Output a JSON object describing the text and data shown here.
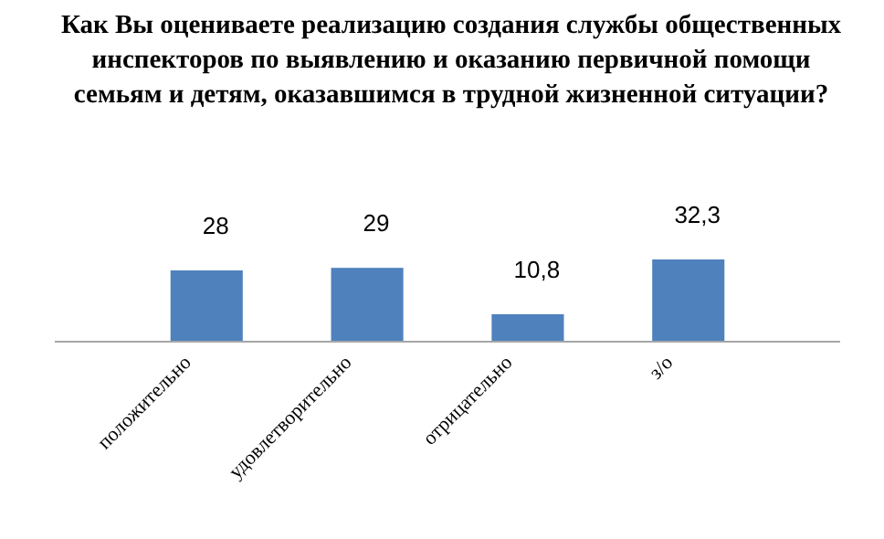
{
  "chart_data": {
    "type": "bar",
    "title": "Как Вы оцениваете реализацию  создания службы общественных инспекторов по выявлению и оказанию первичной помощи семьям и детям, оказавшимся в трудной жизненной ситуации?",
    "categories": [
      "положительно",
      "удовлетворительно",
      "отрицательно",
      "з/о"
    ],
    "values": [
      28,
      29,
      10.8,
      32.3
    ],
    "value_labels": [
      "28",
      "29",
      "10,8",
      "32,3"
    ],
    "color": "#4f81bd"
  }
}
